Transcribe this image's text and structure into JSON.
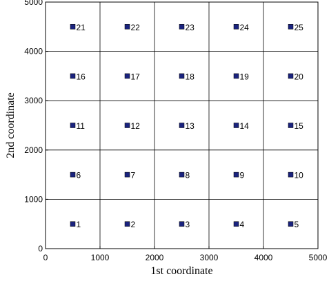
{
  "chart_data": {
    "type": "scatter",
    "title": "",
    "xlabel": "1st coordinate",
    "ylabel": "2nd coordinate",
    "xlim": [
      0,
      5000
    ],
    "ylim": [
      0,
      5000
    ],
    "xticks": [
      0,
      1000,
      2000,
      3000,
      4000,
      5000
    ],
    "yticks": [
      0,
      1000,
      2000,
      3000,
      4000,
      5000
    ],
    "grid": true,
    "marker": "square",
    "marker_color": "#1a237e",
    "points": [
      {
        "label": "1",
        "x": 500,
        "y": 500
      },
      {
        "label": "2",
        "x": 1500,
        "y": 500
      },
      {
        "label": "3",
        "x": 2500,
        "y": 500
      },
      {
        "label": "4",
        "x": 3500,
        "y": 500
      },
      {
        "label": "5",
        "x": 4500,
        "y": 500
      },
      {
        "label": "6",
        "x": 500,
        "y": 1500
      },
      {
        "label": "7",
        "x": 1500,
        "y": 1500
      },
      {
        "label": "8",
        "x": 2500,
        "y": 1500
      },
      {
        "label": "9",
        "x": 3500,
        "y": 1500
      },
      {
        "label": "10",
        "x": 4500,
        "y": 1500
      },
      {
        "label": "11",
        "x": 500,
        "y": 2500
      },
      {
        "label": "12",
        "x": 1500,
        "y": 2500
      },
      {
        "label": "13",
        "x": 2500,
        "y": 2500
      },
      {
        "label": "14",
        "x": 3500,
        "y": 2500
      },
      {
        "label": "15",
        "x": 4500,
        "y": 2500
      },
      {
        "label": "16",
        "x": 500,
        "y": 3500
      },
      {
        "label": "17",
        "x": 1500,
        "y": 3500
      },
      {
        "label": "18",
        "x": 2500,
        "y": 3500
      },
      {
        "label": "19",
        "x": 3500,
        "y": 3500
      },
      {
        "label": "20",
        "x": 4500,
        "y": 3500
      },
      {
        "label": "21",
        "x": 500,
        "y": 4500
      },
      {
        "label": "22",
        "x": 1500,
        "y": 4500
      },
      {
        "label": "23",
        "x": 2500,
        "y": 4500
      },
      {
        "label": "24",
        "x": 3500,
        "y": 4500
      },
      {
        "label": "25",
        "x": 4500,
        "y": 4500
      }
    ]
  }
}
